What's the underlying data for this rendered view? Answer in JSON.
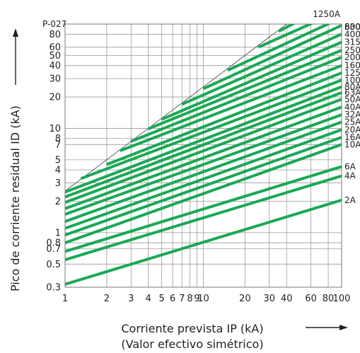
{
  "chart_data": {
    "type": "line",
    "code": "P-027",
    "xlabel": "Corriente prevista IP (kA)",
    "xlabel_sub": "(Valor efectivo simétrico)",
    "ylabel": "Pico de corriente residual ID (kA)",
    "x_scale": "log",
    "y_scale": "log",
    "xlim": [
      1,
      100
    ],
    "ylim": [
      0.3,
      100
    ],
    "x_ticks": [
      1,
      2,
      3,
      4,
      5,
      6,
      7,
      8,
      9,
      10,
      20,
      30,
      40,
      60,
      80,
      100
    ],
    "x_tick_labels": [
      "1",
      "2",
      "3",
      "4",
      "5",
      "6",
      "7",
      "8",
      "9",
      "10",
      "20",
      "30",
      "40",
      "60",
      "80",
      "100"
    ],
    "y_ticks": [
      0.3,
      0.5,
      0.7,
      0.8,
      1,
      2,
      3,
      4,
      5,
      7,
      8,
      10,
      20,
      30,
      40,
      50,
      60,
      80
    ],
    "y_tick_labels": [
      "0.3",
      "0.5",
      "0.7",
      "0.8",
      "1",
      "2",
      "3",
      "4",
      "5",
      "7",
      "8",
      "10",
      "20",
      "30",
      "40",
      "50",
      "60",
      "80"
    ],
    "grid": true,
    "limit_line": {
      "x": [
        1,
        100
      ],
      "y": [
        2.5,
        250
      ]
    },
    "series": [
      {
        "name": "2A",
        "x": [
          1,
          100
        ],
        "y": [
          0.32,
          2.05
        ]
      },
      {
        "name": "4A",
        "x": [
          1,
          100
        ],
        "y": [
          0.55,
          3.5
        ]
      },
      {
        "name": "6A",
        "x": [
          1,
          100
        ],
        "y": [
          0.66,
          4.3
        ]
      },
      {
        "name": "10A",
        "x": [
          1,
          100
        ],
        "y": [
          0.8,
          7.0
        ]
      },
      {
        "name": "16A",
        "x": [
          1,
          100
        ],
        "y": [
          0.95,
          8.2
        ]
      },
      {
        "name": "20A",
        "x": [
          1,
          100
        ],
        "y": [
          1.1,
          9.7
        ]
      },
      {
        "name": "25A",
        "x": [
          1,
          100
        ],
        "y": [
          1.28,
          11.5
        ]
      },
      {
        "name": "32A",
        "x": [
          1,
          100
        ],
        "y": [
          1.5,
          13.5
        ]
      },
      {
        "name": "40A",
        "x": [
          1,
          100
        ],
        "y": [
          1.7,
          16
        ]
      },
      {
        "name": "50A",
        "x": [
          1,
          100
        ],
        "y": [
          1.95,
          19
        ]
      },
      {
        "name": "63A",
        "x": [
          1,
          100
        ],
        "y": [
          2.2,
          22
        ]
      },
      {
        "name": "80A",
        "x": [
          1,
          100
        ],
        "y": [
          2.45,
          25
        ]
      },
      {
        "name": "100A",
        "x": [
          1.3,
          100
        ],
        "y": [
          3.3,
          29
        ]
      },
      {
        "name": "125A",
        "x": [
          2,
          100
        ],
        "y": [
          4.5,
          34
        ]
      },
      {
        "name": "160A",
        "x": [
          2.5,
          100
        ],
        "y": [
          6.1,
          40
        ]
      },
      {
        "name": "200A",
        "x": [
          3,
          100
        ],
        "y": [
          7.5,
          48
        ]
      },
      {
        "name": "250A",
        "x": [
          4,
          100
        ],
        "y": [
          9.9,
          56
        ]
      },
      {
        "name": "315A",
        "x": [
          5,
          100
        ],
        "y": [
          12.2,
          67
        ]
      },
      {
        "name": "400A",
        "x": [
          7,
          100
        ],
        "y": [
          17,
          80
        ]
      },
      {
        "name": "500A",
        "x": [
          10,
          100
        ],
        "y": [
          24,
          97
        ]
      },
      {
        "name": "630A",
        "x": [
          15,
          100
        ],
        "y": [
          36,
          115
        ]
      },
      {
        "name": "800A",
        "x": [
          25,
          100
        ],
        "y": [
          60,
          136
        ]
      },
      {
        "name": "1250A",
        "x": [
          35,
          100
        ],
        "y": [
          85,
          175
        ]
      }
    ]
  }
}
